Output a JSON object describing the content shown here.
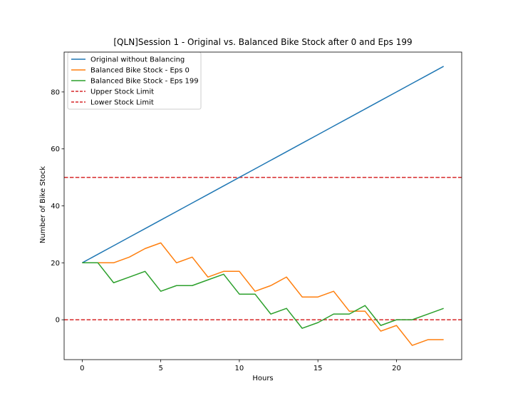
{
  "chart_data": {
    "type": "line",
    "title": "[QLN]Session 1 - Original vs. Balanced Bike Stock after 0 and Eps 199",
    "xlabel": "Hours",
    "ylabel": "Number of Bike Stock",
    "xlim": [
      -1.15,
      24.15
    ],
    "ylim": [
      -14,
      94
    ],
    "xticks": [
      0,
      5,
      10,
      15,
      20
    ],
    "yticks": [
      0,
      20,
      40,
      60,
      80
    ],
    "legend_position": "top-left",
    "x": [
      0,
      1,
      2,
      3,
      4,
      5,
      6,
      7,
      8,
      9,
      10,
      11,
      12,
      13,
      14,
      15,
      16,
      17,
      18,
      19,
      20,
      21,
      22,
      23
    ],
    "series": [
      {
        "name": "Original without Balancing",
        "color": "#1f77b4",
        "style": "solid",
        "values": [
          20,
          23,
          26,
          29,
          32,
          35,
          38,
          41,
          44,
          47,
          50,
          53,
          56,
          59,
          62,
          65,
          68,
          71,
          74,
          77,
          80,
          83,
          86,
          89
        ]
      },
      {
        "name": "Balanced Bike Stock - Eps 0",
        "color": "#ff7f0e",
        "style": "solid",
        "values": [
          20,
          20,
          20,
          22,
          25,
          27,
          20,
          22,
          15,
          17,
          17,
          10,
          12,
          15,
          8,
          8,
          10,
          3,
          3,
          -4,
          -2,
          -9,
          -7,
          -7
        ]
      },
      {
        "name": "Balanced Bike Stock - Eps 199",
        "color": "#2ca02c",
        "style": "solid",
        "values": [
          20,
          20,
          13,
          15,
          17,
          10,
          12,
          12,
          14,
          16,
          9,
          9,
          2,
          4,
          -3,
          -1,
          2,
          2,
          5,
          -2,
          0,
          0,
          2,
          4
        ]
      }
    ],
    "hlines": [
      {
        "name": "Upper Stock Limit",
        "y": 50,
        "color": "#d62728",
        "style": "dashed"
      },
      {
        "name": "Lower Stock Limit",
        "y": 0,
        "color": "#d62728",
        "style": "dashed"
      }
    ]
  }
}
